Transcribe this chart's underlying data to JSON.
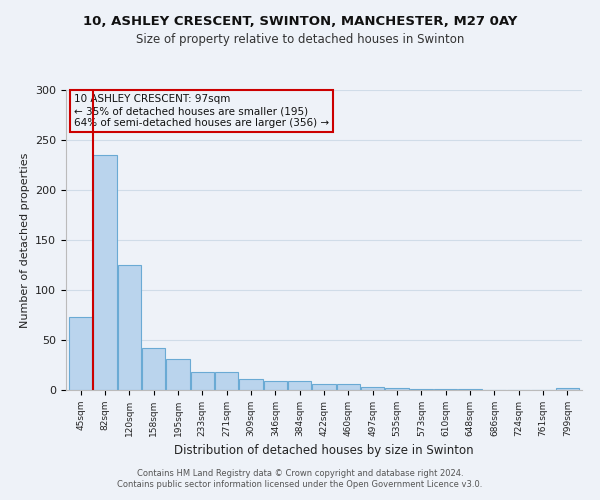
{
  "title1": "10, ASHLEY CRESCENT, SWINTON, MANCHESTER, M27 0AY",
  "title2": "Size of property relative to detached houses in Swinton",
  "xlabel": "Distribution of detached houses by size in Swinton",
  "ylabel": "Number of detached properties",
  "bar_labels": [
    "45sqm",
    "82sqm",
    "120sqm",
    "158sqm",
    "195sqm",
    "233sqm",
    "271sqm",
    "309sqm",
    "346sqm",
    "384sqm",
    "422sqm",
    "460sqm",
    "497sqm",
    "535sqm",
    "573sqm",
    "610sqm",
    "648sqm",
    "686sqm",
    "724sqm",
    "761sqm",
    "799sqm"
  ],
  "bar_values": [
    73,
    235,
    125,
    42,
    31,
    18,
    18,
    11,
    9,
    9,
    6,
    6,
    3,
    2,
    1,
    1,
    1,
    0,
    0,
    0,
    2
  ],
  "bar_color": "#bad4ed",
  "bar_edge_color": "#6aaad4",
  "grid_color": "#d0dce8",
  "vline_x": 0.5,
  "vline_color": "#cc0000",
  "annotation_title": "10 ASHLEY CRESCENT: 97sqm",
  "annotation_line1": "← 35% of detached houses are smaller (195)",
  "annotation_line2": "64% of semi-detached houses are larger (356) →",
  "annotation_box_color": "#cc0000",
  "ylim": [
    0,
    300
  ],
  "yticks": [
    0,
    50,
    100,
    150,
    200,
    250,
    300
  ],
  "footer1": "Contains HM Land Registry data © Crown copyright and database right 2024.",
  "footer2": "Contains public sector information licensed under the Open Government Licence v3.0.",
  "bg_color": "#eef2f8"
}
